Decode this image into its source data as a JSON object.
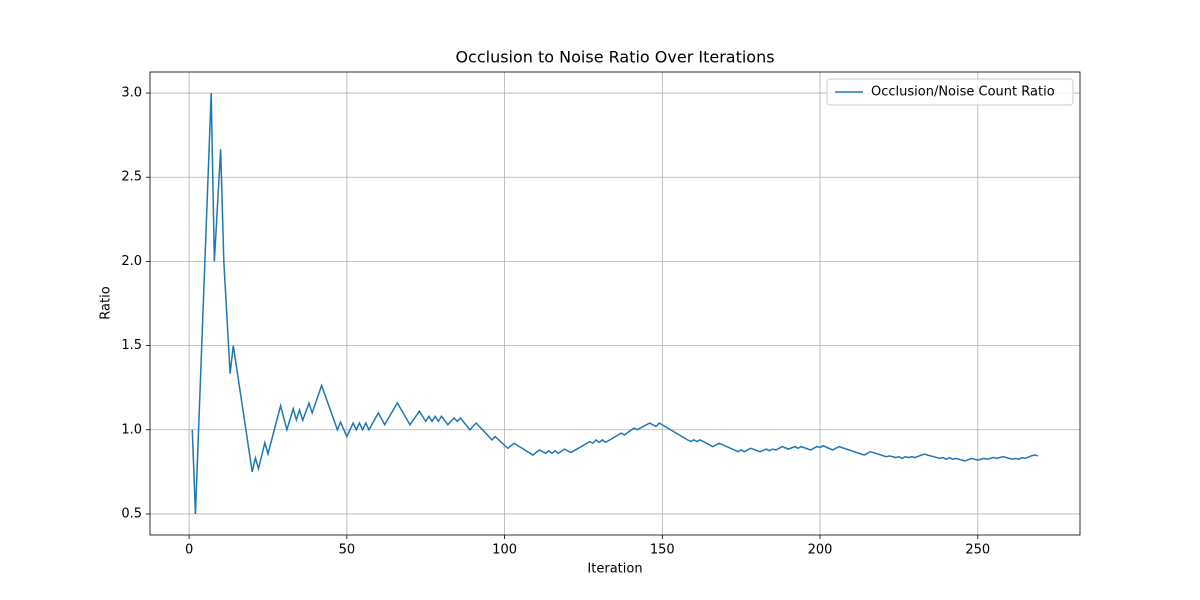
{
  "chart_data": {
    "type": "line",
    "title": "Occlusion to Noise Ratio Over Iterations",
    "x_label": "Iteration",
    "y_label": "Ratio",
    "x": [
      1,
      2,
      7,
      8,
      10,
      11,
      13,
      14,
      20,
      21,
      22,
      24,
      25,
      29,
      31,
      33,
      34,
      35,
      36,
      38,
      39,
      42,
      47,
      48,
      50,
      52,
      53,
      54,
      55,
      56,
      57,
      60,
      62,
      66,
      70,
      73,
      75,
      76,
      77,
      78,
      79,
      80,
      82,
      84,
      85,
      86,
      89,
      91,
      96,
      97,
      101,
      103,
      109,
      111,
      113,
      114,
      115,
      116,
      117,
      119,
      121,
      122,
      127,
      128,
      129,
      130,
      131,
      132,
      137,
      138,
      141,
      142,
      143,
      146,
      148,
      149,
      158,
      159,
      160,
      161,
      162,
      166,
      168,
      174,
      175,
      176,
      178,
      181,
      183,
      184,
      185,
      186,
      188,
      190,
      192,
      193,
      194,
      197,
      199,
      200,
      201,
      204,
      206,
      214,
      216,
      221,
      222,
      224,
      225,
      226,
      227,
      228,
      229,
      230,
      233,
      237,
      238,
      239,
      240,
      241,
      242,
      243,
      246,
      248,
      250,
      252,
      253,
      255,
      256,
      258,
      261,
      262,
      263,
      264,
      265,
      267,
      268,
      269
    ],
    "series": [
      {
        "name": "Occlusion/Noise Count Ratio",
        "color": "#1f77b4",
        "values": [
          1.0,
          0.5,
          3.0,
          2.0,
          2.667,
          2.0,
          1.333,
          1.5,
          0.75,
          0.833,
          0.769,
          0.923,
          0.857,
          1.143,
          1.0,
          1.125,
          1.059,
          1.118,
          1.056,
          1.158,
          1.1,
          1.263,
          1.0,
          1.045,
          0.96,
          1.04,
          1.0,
          1.04,
          1.0,
          1.04,
          1.0,
          1.1,
          1.03,
          1.16,
          1.03,
          1.11,
          1.05,
          1.08,
          1.05,
          1.08,
          1.05,
          1.08,
          1.03,
          1.07,
          1.05,
          1.07,
          1.0,
          1.04,
          0.94,
          0.96,
          0.89,
          0.92,
          0.85,
          0.88,
          0.86,
          0.875,
          0.86,
          0.875,
          0.86,
          0.885,
          0.865,
          0.875,
          0.93,
          0.92,
          0.94,
          0.925,
          0.94,
          0.925,
          0.98,
          0.97,
          1.01,
          1.0,
          1.01,
          1.04,
          1.02,
          1.04,
          0.94,
          0.93,
          0.94,
          0.93,
          0.94,
          0.9,
          0.92,
          0.87,
          0.88,
          0.87,
          0.89,
          0.87,
          0.885,
          0.875,
          0.885,
          0.88,
          0.9,
          0.885,
          0.9,
          0.89,
          0.9,
          0.88,
          0.9,
          0.895,
          0.905,
          0.88,
          0.9,
          0.85,
          0.87,
          0.84,
          0.845,
          0.835,
          0.84,
          0.83,
          0.84,
          0.835,
          0.84,
          0.835,
          0.855,
          0.835,
          0.83,
          0.835,
          0.825,
          0.835,
          0.825,
          0.83,
          0.815,
          0.83,
          0.82,
          0.83,
          0.825,
          0.835,
          0.83,
          0.84,
          0.825,
          0.83,
          0.825,
          0.835,
          0.83,
          0.845,
          0.85,
          0.845
        ]
      }
    ],
    "xlim": [
      -12.4,
      282.4
    ],
    "xticks": [
      0,
      50,
      100,
      150,
      200,
      250
    ],
    "ylim": [
      0.375,
      3.125
    ],
    "yticks": [
      0.5,
      {
        "value": 1,
        "label": "1.0"
      },
      1.5,
      {
        "value": 2,
        "label": "2.0"
      },
      2.5,
      {
        "value": 3,
        "label": "3.0"
      }
    ],
    "grid": true,
    "legend": "upper right"
  }
}
